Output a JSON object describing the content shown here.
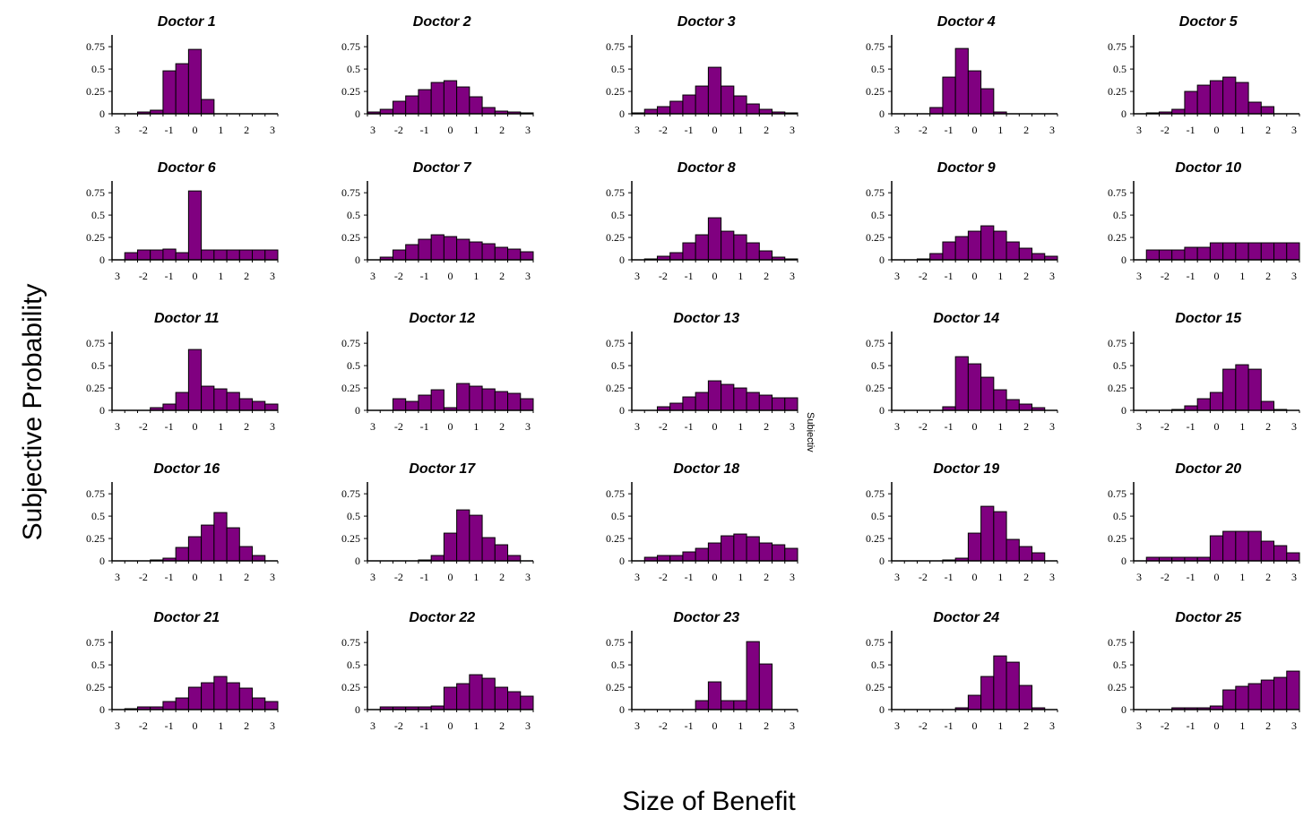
{
  "figure": {
    "ylabel": "Subjective Probability",
    "xlabel": "Size of Benefit",
    "stray_text": "Subjectiv"
  },
  "colors": {
    "bar_fill": "#800080",
    "bar_stroke": "#000000",
    "axis": "#000000"
  },
  "chart_data": [
    {
      "type": "bar",
      "title": "Doctor 1",
      "yticks": [
        "0",
        "0.25",
        "0.5",
        "0.75"
      ],
      "xticks": [
        "3",
        "-2",
        "-1",
        "0",
        "1",
        "2",
        "3"
      ],
      "ylim": [
        0,
        0.75
      ],
      "x": [
        -3,
        -2.5,
        -2,
        -1.5,
        -1,
        -0.5,
        0,
        0.5,
        1,
        1.5,
        2,
        2.5,
        3
      ],
      "values": [
        0,
        0,
        0.02,
        0.04,
        0.48,
        0.56,
        0.72,
        0.16,
        0,
        0,
        0,
        0,
        0
      ]
    },
    {
      "type": "bar",
      "title": "Doctor 2",
      "yticks": [
        "0",
        "0.25",
        "0.5",
        "0.75"
      ],
      "xticks": [
        "3",
        "-2",
        "-1",
        "0",
        "1",
        "2",
        "3"
      ],
      "ylim": [
        0,
        0.75
      ],
      "x": [
        -3,
        -2.5,
        -2,
        -1.5,
        -1,
        -0.5,
        0,
        0.5,
        1,
        1.5,
        2,
        2.5,
        3
      ],
      "values": [
        0.02,
        0.05,
        0.14,
        0.2,
        0.27,
        0.35,
        0.37,
        0.3,
        0.19,
        0.07,
        0.03,
        0.02,
        0.01
      ]
    },
    {
      "type": "bar",
      "title": "Doctor 3",
      "yticks": [
        "0",
        "0.25",
        "0.5",
        "0.75"
      ],
      "xticks": [
        "3",
        "-2",
        "-1",
        "0",
        "1",
        "2",
        "3"
      ],
      "ylim": [
        0,
        0.75
      ],
      "x": [
        -3,
        -2.5,
        -2,
        -1.5,
        -1,
        -0.5,
        0,
        0.5,
        1,
        1.5,
        2,
        2.5,
        3
      ],
      "values": [
        0.01,
        0.05,
        0.08,
        0.14,
        0.21,
        0.31,
        0.52,
        0.31,
        0.2,
        0.11,
        0.05,
        0.02,
        0.01
      ]
    },
    {
      "type": "bar",
      "title": "Doctor 4",
      "yticks": [
        "0",
        "0.25",
        "0.5",
        "0.75"
      ],
      "xticks": [
        "3",
        "-2",
        "-1",
        "0",
        "1",
        "2",
        "3"
      ],
      "ylim": [
        0,
        0.75
      ],
      "x": [
        -3,
        -2.5,
        -2,
        -1.5,
        -1,
        -0.5,
        0,
        0.5,
        1,
        1.5,
        2,
        2.5,
        3
      ],
      "values": [
        0,
        0,
        0,
        0.07,
        0.41,
        0.73,
        0.48,
        0.28,
        0.02,
        0,
        0,
        0,
        0
      ]
    },
    {
      "type": "bar",
      "title": "Doctor 5",
      "yticks": [
        "0",
        "0.25",
        "0.5",
        "0.75"
      ],
      "xticks": [
        "3",
        "-2",
        "-1",
        "0",
        "1",
        "2",
        "3"
      ],
      "ylim": [
        0,
        0.75
      ],
      "x": [
        -3,
        -2.5,
        -2,
        -1.5,
        -1,
        -0.5,
        0,
        0.5,
        1,
        1.5,
        2,
        2.5,
        3
      ],
      "values": [
        0,
        0.01,
        0.02,
        0.05,
        0.25,
        0.32,
        0.37,
        0.41,
        0.35,
        0.13,
        0.08,
        0,
        0
      ]
    },
    {
      "type": "bar",
      "title": "Doctor 6",
      "yticks": [
        "0",
        "0.25",
        "0.5",
        "0.75"
      ],
      "xticks": [
        "3",
        "-2",
        "-1",
        "0",
        "1",
        "2",
        "3"
      ],
      "ylim": [
        0,
        0.75
      ],
      "x": [
        -3,
        -2.5,
        -2,
        -1.5,
        -1,
        -0.5,
        0,
        0.5,
        1,
        1.5,
        2,
        2.5,
        3
      ],
      "values": [
        0,
        0.08,
        0.11,
        0.11,
        0.12,
        0.08,
        0.77,
        0.11,
        0.11,
        0.11,
        0.11,
        0.11,
        0.11
      ]
    },
    {
      "type": "bar",
      "title": "Doctor 7",
      "yticks": [
        "0",
        "0.25",
        "0.5",
        "0.75"
      ],
      "xticks": [
        "3",
        "-2",
        "-1",
        "0",
        "1",
        "2",
        "3"
      ],
      "ylim": [
        0,
        0.75
      ],
      "x": [
        -3,
        -2.5,
        -2,
        -1.5,
        -1,
        -0.5,
        0,
        0.5,
        1,
        1.5,
        2,
        2.5,
        3
      ],
      "values": [
        0,
        0.03,
        0.11,
        0.17,
        0.23,
        0.28,
        0.26,
        0.23,
        0.2,
        0.18,
        0.14,
        0.12,
        0.09
      ]
    },
    {
      "type": "bar",
      "title": "Doctor 8",
      "yticks": [
        "0",
        "0.25",
        "0.5",
        "0.75"
      ],
      "xticks": [
        "3",
        "-2",
        "-1",
        "0",
        "1",
        "2",
        "3"
      ],
      "ylim": [
        0,
        0.75
      ],
      "x": [
        -3,
        -2.5,
        -2,
        -1.5,
        -1,
        -0.5,
        0,
        0.5,
        1,
        1.5,
        2,
        2.5,
        3
      ],
      "values": [
        0,
        0.01,
        0.04,
        0.08,
        0.19,
        0.28,
        0.47,
        0.32,
        0.28,
        0.19,
        0.1,
        0.03,
        0.01
      ]
    },
    {
      "type": "bar",
      "title": "Doctor 9",
      "yticks": [
        "0",
        "0.25",
        "0.5",
        "0.75"
      ],
      "xticks": [
        "3",
        "-2",
        "-1",
        "0",
        "1",
        "2",
        "3"
      ],
      "ylim": [
        0,
        0.75
      ],
      "x": [
        -3,
        -2.5,
        -2,
        -1.5,
        -1,
        -0.5,
        0,
        0.5,
        1,
        1.5,
        2,
        2.5,
        3
      ],
      "values": [
        0,
        0,
        0.01,
        0.07,
        0.2,
        0.26,
        0.32,
        0.38,
        0.32,
        0.2,
        0.13,
        0.07,
        0.04
      ]
    },
    {
      "type": "bar",
      "title": "Doctor 10",
      "yticks": [
        "0",
        "0.25",
        "0.5",
        "0.75"
      ],
      "xticks": [
        "3",
        "-2",
        "-1",
        "0",
        "1",
        "2",
        "3"
      ],
      "ylim": [
        0,
        0.75
      ],
      "x": [
        -3,
        -2.5,
        -2,
        -1.5,
        -1,
        -0.5,
        0,
        0.5,
        1,
        1.5,
        2,
        2.5,
        3
      ],
      "values": [
        0,
        0.11,
        0.11,
        0.11,
        0.14,
        0.14,
        0.19,
        0.19,
        0.19,
        0.19,
        0.19,
        0.19,
        0.19
      ]
    },
    {
      "type": "bar",
      "title": "Doctor 11",
      "yticks": [
        "0",
        "0.25",
        "0.5",
        "0.75"
      ],
      "xticks": [
        "3",
        "-2",
        "-1",
        "0",
        "1",
        "2",
        "3"
      ],
      "ylim": [
        0,
        0.75
      ],
      "x": [
        -3,
        -2.5,
        -2,
        -1.5,
        -1,
        -0.5,
        0,
        0.5,
        1,
        1.5,
        2,
        2.5,
        3
      ],
      "values": [
        0,
        0,
        0,
        0.03,
        0.07,
        0.2,
        0.68,
        0.27,
        0.24,
        0.2,
        0.13,
        0.1,
        0.07
      ]
    },
    {
      "type": "bar",
      "title": "Doctor 12",
      "yticks": [
        "0",
        "0.25",
        "0.5",
        "0.75"
      ],
      "xticks": [
        "3",
        "-2",
        "-1",
        "0",
        "1",
        "2",
        "3"
      ],
      "ylim": [
        0,
        0.75
      ],
      "x": [
        -3,
        -2.5,
        -2,
        -1.5,
        -1,
        -0.5,
        0,
        0.5,
        1,
        1.5,
        2,
        2.5,
        3
      ],
      "values": [
        0,
        0,
        0.13,
        0.1,
        0.17,
        0.23,
        0.03,
        0.3,
        0.27,
        0.24,
        0.21,
        0.19,
        0.13
      ]
    },
    {
      "type": "bar",
      "title": "Doctor 13",
      "yticks": [
        "0",
        "0.25",
        "0.5",
        "0.75"
      ],
      "xticks": [
        "3",
        "-2",
        "-1",
        "0",
        "1",
        "2",
        "3"
      ],
      "ylim": [
        0,
        0.75
      ],
      "x": [
        -3,
        -2.5,
        -2,
        -1.5,
        -1,
        -0.5,
        0,
        0.5,
        1,
        1.5,
        2,
        2.5,
        3
      ],
      "values": [
        0,
        0,
        0.04,
        0.08,
        0.15,
        0.2,
        0.33,
        0.29,
        0.25,
        0.2,
        0.17,
        0.14,
        0.14
      ]
    },
    {
      "type": "bar",
      "title": "Doctor 14",
      "yticks": [
        "0",
        "0.25",
        "0.5",
        "0.75"
      ],
      "xticks": [
        "3",
        "-2",
        "-1",
        "0",
        "1",
        "2",
        "3"
      ],
      "ylim": [
        0,
        0.75
      ],
      "x": [
        -3,
        -2.5,
        -2,
        -1.5,
        -1,
        -0.5,
        0,
        0.5,
        1,
        1.5,
        2,
        2.5,
        3
      ],
      "values": [
        0,
        0,
        0,
        0,
        0.04,
        0.6,
        0.52,
        0.37,
        0.23,
        0.12,
        0.07,
        0.03,
        0
      ]
    },
    {
      "type": "bar",
      "title": "Doctor 15",
      "yticks": [
        "0",
        "0.25",
        "0.5",
        "0.75"
      ],
      "xticks": [
        "3",
        "-2",
        "-1",
        "0",
        "1",
        "2",
        "3"
      ],
      "ylim": [
        0,
        0.75
      ],
      "x": [
        -3,
        -2.5,
        -2,
        -1.5,
        -1,
        -0.5,
        0,
        0.5,
        1,
        1.5,
        2,
        2.5,
        3
      ],
      "values": [
        0,
        0,
        0,
        0.01,
        0.05,
        0.13,
        0.2,
        0.46,
        0.51,
        0.46,
        0.1,
        0.01,
        0
      ]
    },
    {
      "type": "bar",
      "title": "Doctor 16",
      "yticks": [
        "0",
        "0.25",
        "0.5",
        "0.75"
      ],
      "xticks": [
        "3",
        "-2",
        "-1",
        "0",
        "1",
        "2",
        "3"
      ],
      "ylim": [
        0,
        0.75
      ],
      "x": [
        -3,
        -2.5,
        -2,
        -1.5,
        -1,
        -0.5,
        0,
        0.5,
        1,
        1.5,
        2,
        2.5,
        3
      ],
      "values": [
        0,
        0,
        0,
        0.01,
        0.03,
        0.15,
        0.27,
        0.4,
        0.54,
        0.37,
        0.16,
        0.06,
        0
      ]
    },
    {
      "type": "bar",
      "title": "Doctor 17",
      "yticks": [
        "0",
        "0.25",
        "0.5",
        "0.75"
      ],
      "xticks": [
        "3",
        "-2",
        "-1",
        "0",
        "1",
        "2",
        "3"
      ],
      "ylim": [
        0,
        0.75
      ],
      "x": [
        -3,
        -2.5,
        -2,
        -1.5,
        -1,
        -0.5,
        0,
        0.5,
        1,
        1.5,
        2,
        2.5,
        3
      ],
      "values": [
        0,
        0,
        0,
        0,
        0.01,
        0.06,
        0.31,
        0.57,
        0.51,
        0.26,
        0.18,
        0.06,
        0
      ]
    },
    {
      "type": "bar",
      "title": "Doctor 18",
      "yticks": [
        "0",
        "0.25",
        "0.5",
        "0.75"
      ],
      "xticks": [
        "3",
        "-2",
        "-1",
        "0",
        "1",
        "2",
        "3"
      ],
      "ylim": [
        0,
        0.75
      ],
      "x": [
        -3,
        -2.5,
        -2,
        -1.5,
        -1,
        -0.5,
        0,
        0.5,
        1,
        1.5,
        2,
        2.5,
        3
      ],
      "values": [
        0,
        0.04,
        0.06,
        0.06,
        0.1,
        0.14,
        0.2,
        0.28,
        0.3,
        0.27,
        0.2,
        0.18,
        0.14
      ]
    },
    {
      "type": "bar",
      "title": "Doctor 19",
      "yticks": [
        "0",
        "0.25",
        "0.5",
        "0.75"
      ],
      "xticks": [
        "3",
        "-2",
        "-1",
        "0",
        "1",
        "2",
        "3"
      ],
      "ylim": [
        0,
        0.75
      ],
      "x": [
        -3,
        -2.5,
        -2,
        -1.5,
        -1,
        -0.5,
        0,
        0.5,
        1,
        1.5,
        2,
        2.5,
        3
      ],
      "values": [
        0,
        0,
        0,
        0,
        0.01,
        0.03,
        0.31,
        0.61,
        0.55,
        0.24,
        0.16,
        0.09,
        0
      ]
    },
    {
      "type": "bar",
      "title": "Doctor 20",
      "yticks": [
        "0",
        "0.25",
        "0.5",
        "0.75"
      ],
      "xticks": [
        "3",
        "-2",
        "-1",
        "0",
        "1",
        "2",
        "3"
      ],
      "ylim": [
        0,
        0.75
      ],
      "x": [
        -3,
        -2.5,
        -2,
        -1.5,
        -1,
        -0.5,
        0,
        0.5,
        1,
        1.5,
        2,
        2.5,
        3
      ],
      "values": [
        0,
        0.04,
        0.04,
        0.04,
        0.04,
        0.04,
        0.28,
        0.33,
        0.33,
        0.33,
        0.22,
        0.17,
        0.09
      ]
    },
    {
      "type": "bar",
      "title": "Doctor 21",
      "yticks": [
        "0",
        "0.25",
        "0.5",
        "0.75"
      ],
      "xticks": [
        "3",
        "-2",
        "-1",
        "0",
        "1",
        "2",
        "3"
      ],
      "ylim": [
        0,
        0.75
      ],
      "x": [
        -3,
        -2.5,
        -2,
        -1.5,
        -1,
        -0.5,
        0,
        0.5,
        1,
        1.5,
        2,
        2.5,
        3
      ],
      "values": [
        0,
        0.01,
        0.03,
        0.03,
        0.09,
        0.13,
        0.25,
        0.3,
        0.37,
        0.3,
        0.24,
        0.13,
        0.09
      ]
    },
    {
      "type": "bar",
      "title": "Doctor 22",
      "yticks": [
        "0",
        "0.25",
        "0.5",
        "0.75"
      ],
      "xticks": [
        "3",
        "-2",
        "-1",
        "0",
        "1",
        "2",
        "3"
      ],
      "ylim": [
        0,
        0.75
      ],
      "x": [
        -3,
        -2.5,
        -2,
        -1.5,
        -1,
        -0.5,
        0,
        0.5,
        1,
        1.5,
        2,
        2.5,
        3
      ],
      "values": [
        0,
        0.03,
        0.03,
        0.03,
        0.03,
        0.04,
        0.25,
        0.29,
        0.39,
        0.35,
        0.25,
        0.2,
        0.15
      ]
    },
    {
      "type": "bar",
      "title": "Doctor 23",
      "yticks": [
        "0",
        "0.25",
        "0.5",
        "0.75"
      ],
      "xticks": [
        "3",
        "-2",
        "-1",
        "0",
        "1",
        "2",
        "3"
      ],
      "ylim": [
        0,
        0.75
      ],
      "x": [
        -3,
        -2.5,
        -2,
        -1.5,
        -1,
        -0.5,
        0,
        0.5,
        1,
        1.5,
        2,
        2.5,
        3
      ],
      "values": [
        0,
        0,
        0,
        0,
        0,
        0.1,
        0.31,
        0.1,
        0.1,
        0.76,
        0.51,
        0,
        0
      ]
    },
    {
      "type": "bar",
      "title": "Doctor 24",
      "yticks": [
        "0",
        "0.25",
        "0.5",
        "0.75"
      ],
      "xticks": [
        "3",
        "-2",
        "-1",
        "0",
        "1",
        "2",
        "3"
      ],
      "ylim": [
        0,
        0.75
      ],
      "x": [
        -3,
        -2.5,
        -2,
        -1.5,
        -1,
        -0.5,
        0,
        0.5,
        1,
        1.5,
        2,
        2.5,
        3
      ],
      "values": [
        0,
        0,
        0,
        0,
        0,
        0.02,
        0.16,
        0.37,
        0.6,
        0.53,
        0.27,
        0.02,
        0
      ]
    },
    {
      "type": "bar",
      "title": "Doctor 25",
      "yticks": [
        "0",
        "0.25",
        "0.5",
        "0.75"
      ],
      "xticks": [
        "3",
        "-2",
        "-1",
        "0",
        "1",
        "2",
        "3"
      ],
      "ylim": [
        0,
        0.75
      ],
      "x": [
        -3,
        -2.5,
        -2,
        -1.5,
        -1,
        -0.5,
        0,
        0.5,
        1,
        1.5,
        2,
        2.5,
        3
      ],
      "values": [
        0,
        0,
        0,
        0.02,
        0.02,
        0.02,
        0.04,
        0.22,
        0.26,
        0.29,
        0.33,
        0.36,
        0.43
      ]
    }
  ]
}
